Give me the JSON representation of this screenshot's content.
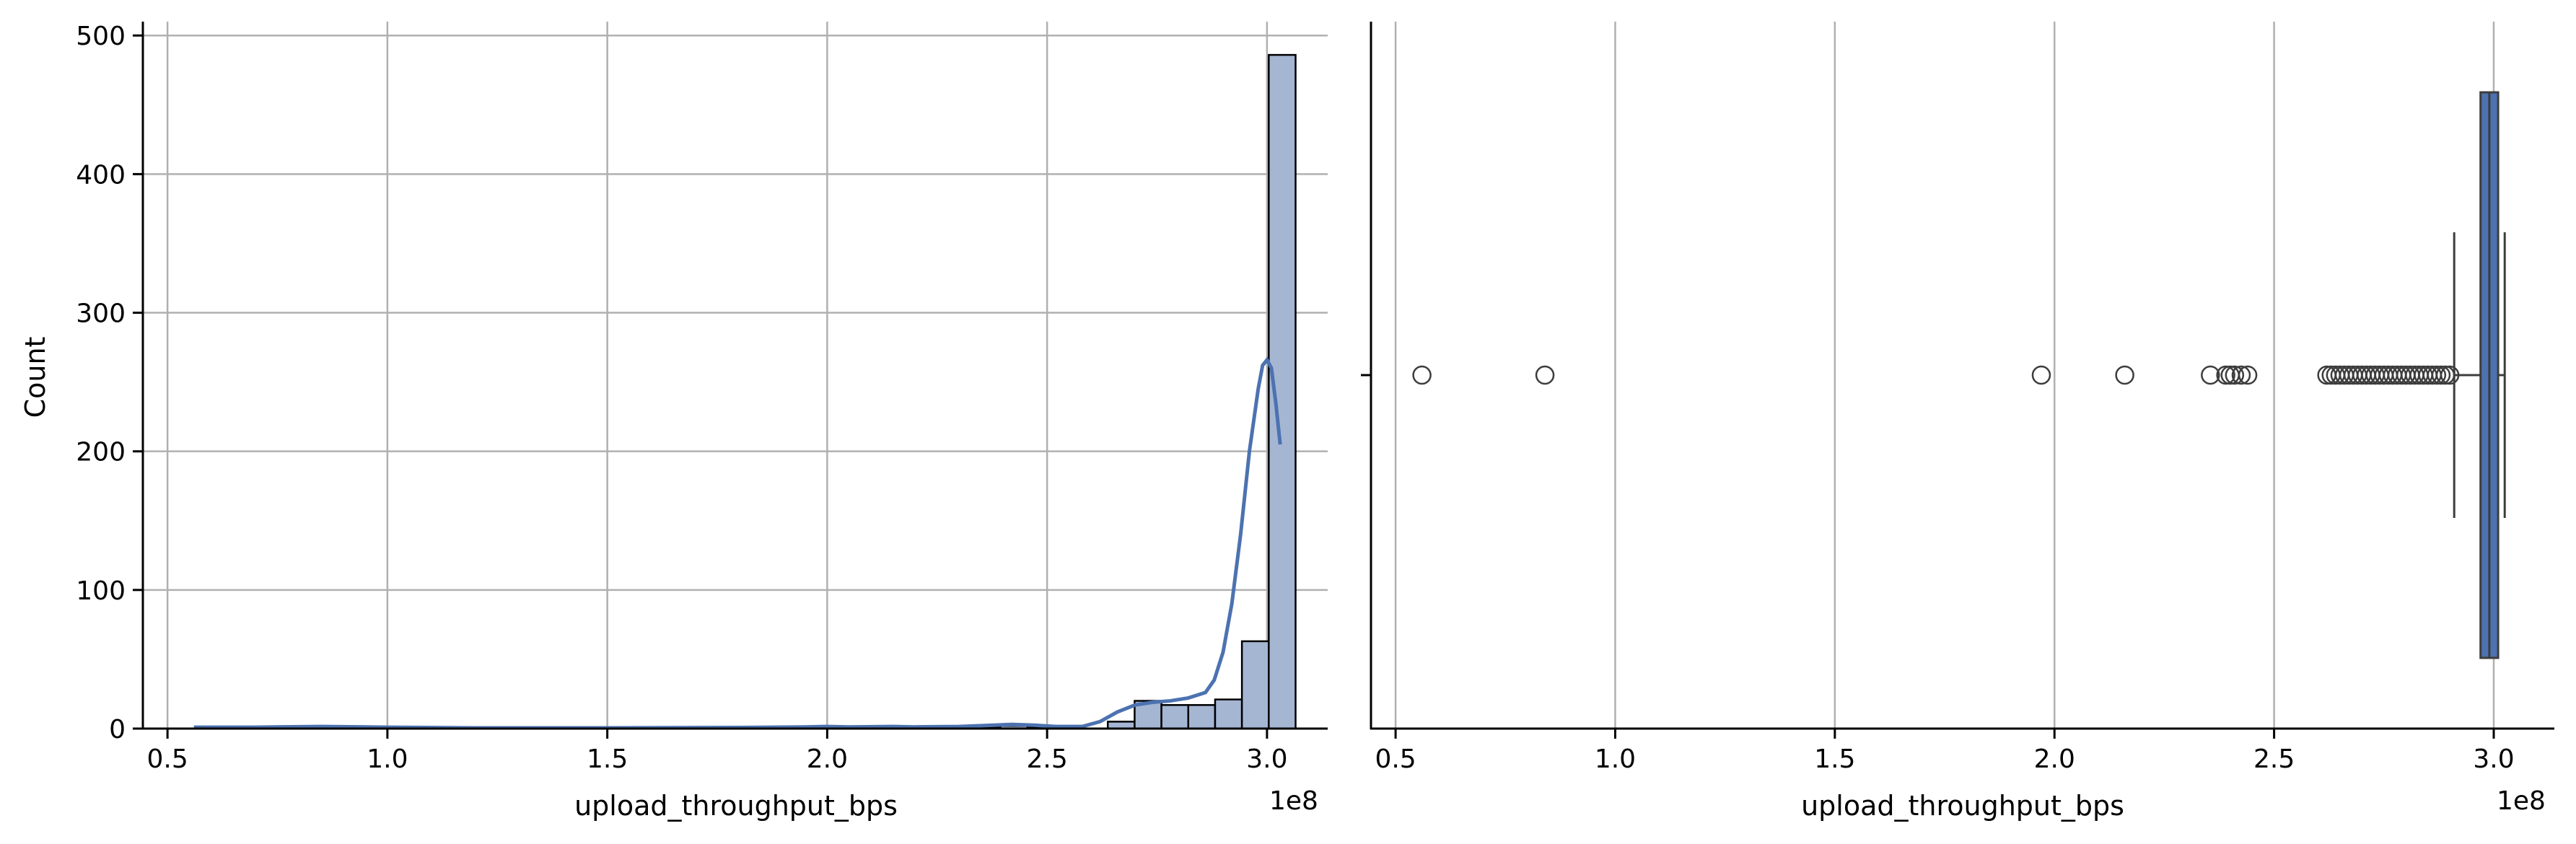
{
  "chart_data": [
    {
      "type": "histogram",
      "xlabel": "upload_throughput_bps",
      "ylabel": "Count",
      "x_offset_label": "1e8",
      "xlim": [
        0.444,
        3.138
      ],
      "ylim": [
        0,
        510
      ],
      "x_unit_scale": 100000000,
      "xticks": [
        0.5,
        1.0,
        1.5,
        2.0,
        2.5,
        3.0
      ],
      "xtick_labels": [
        "0.5",
        "1.0",
        "1.5",
        "2.0",
        "2.5",
        "3.0"
      ],
      "yticks": [
        0,
        100,
        200,
        300,
        400,
        500
      ],
      "ytick_labels": [
        "0",
        "100",
        "200",
        "300",
        "400",
        "500"
      ],
      "grid": true,
      "bar_color": "#a5b6d3",
      "kde_color": "#4c72b0",
      "bins": [
        {
          "x0": 2.333,
          "x1": 2.394,
          "count": 1
        },
        {
          "x0": 2.394,
          "x1": 2.455,
          "count": 2
        },
        {
          "x0": 2.455,
          "x1": 2.516,
          "count": 1
        },
        {
          "x0": 2.638,
          "x1": 2.699,
          "count": 5
        },
        {
          "x0": 2.699,
          "x1": 2.76,
          "count": 20
        },
        {
          "x0": 2.76,
          "x1": 2.821,
          "count": 17
        },
        {
          "x0": 2.821,
          "x1": 2.882,
          "count": 17
        },
        {
          "x0": 2.882,
          "x1": 2.943,
          "count": 21
        },
        {
          "x0": 2.943,
          "x1": 3.004,
          "count": 63
        },
        {
          "x0": 3.004,
          "x1": 3.065,
          "count": 486
        }
      ],
      "kde": {
        "x": [
          0.56,
          0.7,
          0.85,
          1.0,
          1.2,
          1.5,
          1.8,
          1.95,
          2.0,
          2.05,
          2.15,
          2.2,
          2.3,
          2.38,
          2.42,
          2.47,
          2.52,
          2.58,
          2.62,
          2.66,
          2.7,
          2.74,
          2.78,
          2.82,
          2.86,
          2.88,
          2.9,
          2.92,
          2.94,
          2.96,
          2.98,
          2.99,
          3.0,
          3.01,
          3.02,
          3.03
        ],
        "y": [
          1,
          1,
          1.5,
          1,
          0.5,
          0.5,
          0.8,
          1.2,
          1.5,
          1.2,
          1.5,
          1.2,
          1.5,
          2.5,
          3,
          2.5,
          1.5,
          1.5,
          5,
          12,
          17,
          19,
          20,
          22,
          26,
          35,
          55,
          90,
          140,
          200,
          245,
          262,
          266,
          260,
          235,
          205
        ]
      }
    },
    {
      "type": "boxplot",
      "xlabel": "upload_throughput_bps",
      "x_offset_label": "1e8",
      "xlim": [
        0.444,
        3.138
      ],
      "x_unit_scale": 100000000,
      "xticks": [
        0.5,
        1.0,
        1.5,
        2.0,
        2.5,
        3.0
      ],
      "xtick_labels": [
        "0.5",
        "1.0",
        "1.5",
        "2.0",
        "2.5",
        "3.0"
      ],
      "grid": true,
      "box_color": "#4c72b0",
      "q1": 2.97,
      "median": 2.99,
      "q3": 3.01,
      "whisker_low": 2.91,
      "whisker_high": 3.025,
      "outliers": [
        0.56,
        0.84,
        1.97,
        2.16,
        2.355,
        2.39,
        2.4,
        2.41,
        2.425,
        2.44,
        2.62,
        2.63,
        2.64,
        2.65,
        2.66,
        2.67,
        2.68,
        2.69,
        2.7,
        2.71,
        2.72,
        2.73,
        2.74,
        2.75,
        2.76,
        2.77,
        2.78,
        2.79,
        2.8,
        2.81,
        2.82,
        2.83,
        2.84,
        2.85,
        2.86,
        2.87,
        2.88,
        2.89,
        2.9
      ]
    }
  ]
}
